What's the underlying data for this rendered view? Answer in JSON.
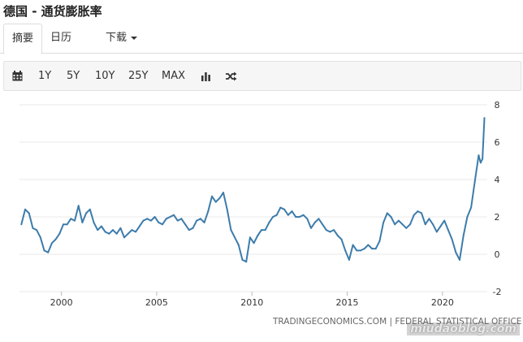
{
  "page": {
    "title": "德国 - 通货膨胀率"
  },
  "tabs": [
    {
      "label": "摘要"
    },
    {
      "label": "日历"
    },
    {
      "label": "下载"
    }
  ],
  "toolbar": {
    "ranges": [
      "1Y",
      "5Y",
      "10Y",
      "25Y",
      "MAX"
    ],
    "icons": [
      "calendar-icon",
      "bar-chart-icon",
      "shuffle-icon"
    ]
  },
  "source_text": "TRADINGECONOMICS.COM | FEDERAL STATISTICAL OFFICE",
  "watermark": "miudaoblog.com",
  "colors": {
    "line": "#3d7cab",
    "grid": "#e9e9e9",
    "axis_text": "#333333"
  },
  "chart_data": {
    "type": "line",
    "title": "",
    "xlabel": "",
    "ylabel": "",
    "xlim": [
      1997.8,
      2022.35
    ],
    "ylim": [
      -2,
      8
    ],
    "yticks": [
      -2,
      0,
      2,
      4,
      6,
      8
    ],
    "xticks": [
      2000,
      2005,
      2010,
      2015,
      2020
    ],
    "grid": "horizontal",
    "series": [
      {
        "name": "",
        "x": [
          1997.9,
          1998.1,
          1998.3,
          1998.5,
          1998.7,
          1998.9,
          1999.1,
          1999.3,
          1999.5,
          1999.7,
          1999.9,
          2000.1,
          2000.3,
          2000.5,
          2000.7,
          2000.9,
          2001.1,
          2001.3,
          2001.5,
          2001.7,
          2001.9,
          2002.1,
          2002.3,
          2002.5,
          2002.7,
          2002.9,
          2003.1,
          2003.3,
          2003.5,
          2003.7,
          2003.9,
          2004.1,
          2004.3,
          2004.5,
          2004.7,
          2004.9,
          2005.1,
          2005.3,
          2005.5,
          2005.7,
          2005.9,
          2006.1,
          2006.3,
          2006.5,
          2006.7,
          2006.9,
          2007.1,
          2007.3,
          2007.5,
          2007.7,
          2007.9,
          2008.1,
          2008.3,
          2008.5,
          2008.7,
          2008.9,
          2009.1,
          2009.3,
          2009.5,
          2009.7,
          2009.9,
          2010.1,
          2010.3,
          2010.5,
          2010.7,
          2010.9,
          2011.1,
          2011.3,
          2011.5,
          2011.7,
          2011.9,
          2012.1,
          2012.3,
          2012.5,
          2012.7,
          2012.9,
          2013.1,
          2013.3,
          2013.5,
          2013.7,
          2013.9,
          2014.1,
          2014.3,
          2014.5,
          2014.7,
          2014.9,
          2015.1,
          2015.3,
          2015.5,
          2015.7,
          2015.9,
          2016.1,
          2016.3,
          2016.5,
          2016.7,
          2016.9,
          2017.1,
          2017.3,
          2017.5,
          2017.7,
          2017.9,
          2018.1,
          2018.3,
          2018.5,
          2018.7,
          2018.9,
          2019.1,
          2019.3,
          2019.5,
          2019.7,
          2019.9,
          2020.1,
          2020.3,
          2020.5,
          2020.7,
          2020.9,
          2021.1,
          2021.3,
          2021.5,
          2021.7,
          2021.9,
          2022.0,
          2022.1,
          2022.2
        ],
        "values": [
          1.6,
          2.4,
          2.2,
          1.4,
          1.3,
          0.9,
          0.2,
          0.1,
          0.6,
          0.8,
          1.1,
          1.6,
          1.6,
          1.9,
          1.8,
          2.6,
          1.7,
          2.2,
          2.4,
          1.7,
          1.3,
          1.5,
          1.2,
          1.1,
          1.3,
          1.1,
          1.4,
          0.9,
          1.1,
          1.3,
          1.2,
          1.5,
          1.8,
          1.9,
          1.8,
          2.0,
          1.7,
          1.6,
          1.9,
          2.0,
          2.1,
          1.8,
          1.9,
          1.6,
          1.3,
          1.4,
          1.8,
          1.9,
          1.7,
          2.3,
          3.1,
          2.8,
          3.0,
          3.3,
          2.4,
          1.3,
          0.9,
          0.5,
          -0.3,
          -0.4,
          0.9,
          0.6,
          1.0,
          1.3,
          1.3,
          1.7,
          2.0,
          2.1,
          2.5,
          2.4,
          2.1,
          2.3,
          2.0,
          2.0,
          2.1,
          1.9,
          1.4,
          1.7,
          1.9,
          1.6,
          1.3,
          1.2,
          1.3,
          1.0,
          0.8,
          0.2,
          -0.3,
          0.5,
          0.2,
          0.2,
          0.3,
          0.5,
          0.3,
          0.3,
          0.7,
          1.7,
          2.2,
          2.0,
          1.6,
          1.8,
          1.6,
          1.4,
          1.6,
          2.1,
          2.3,
          2.2,
          1.6,
          1.9,
          1.6,
          1.2,
          1.5,
          1.8,
          1.3,
          0.8,
          0.1,
          -0.3,
          1.0,
          2.0,
          2.5,
          3.9,
          5.3,
          4.9,
          5.1,
          7.3
        ],
        "rendered_mode": "polyline"
      }
    ]
  }
}
